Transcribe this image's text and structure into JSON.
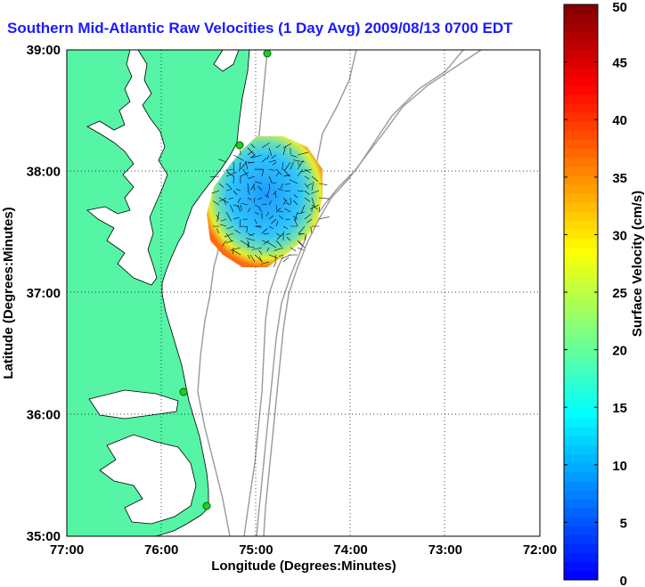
{
  "title": "Southern Mid-Atlantic Raw Velocities (1 Day Avg) 2009/08/13 0700 EDT",
  "map": {
    "xlabel": "Longitude (Degrees:Minutes)",
    "ylabel": "Latitude (Degrees:Minutes)",
    "x_ticks": [
      "77:00",
      "76:00",
      "75:00",
      "74:00",
      "73:00",
      "72:00"
    ],
    "y_ticks": [
      "39:00",
      "38:00",
      "37:00",
      "36:00",
      "35:00"
    ],
    "xlim": [
      -77,
      -72
    ],
    "ylim": [
      35,
      39
    ],
    "grid": "dotted",
    "colors": {
      "land": "#55f5a5",
      "ocean": "#ffffff",
      "bathymetry": "#999999",
      "sites": "#22cc22"
    }
  },
  "colorbar": {
    "label": "Surface Velocity (cm/s)",
    "min": 0,
    "max": 50,
    "ticks": [
      "0",
      "5",
      "10",
      "15",
      "20",
      "25",
      "30",
      "35",
      "40",
      "45",
      "50"
    ],
    "colormap": "jet"
  }
}
